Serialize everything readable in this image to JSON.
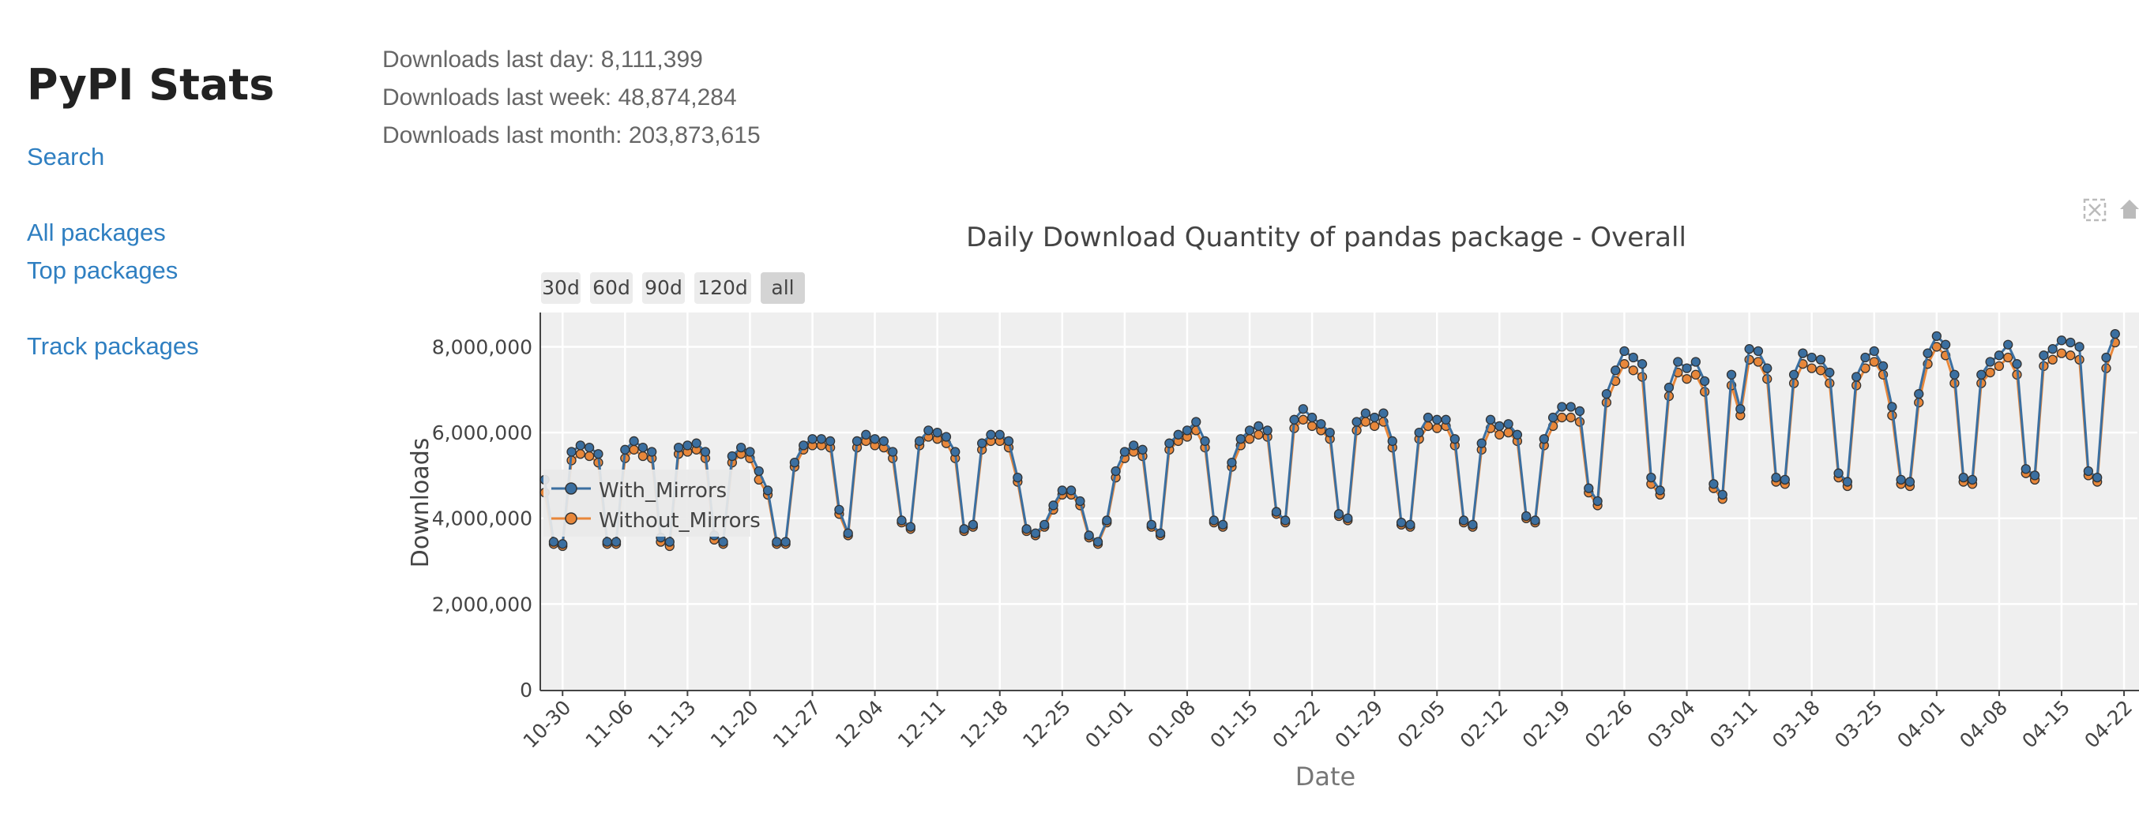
{
  "sidebar": {
    "title": "PyPI Stats",
    "links": [
      "Search",
      "All packages",
      "Top packages",
      "Track packages"
    ]
  },
  "stats": {
    "last_day": "Downloads last day: 8,111,399",
    "last_week": "Downloads last week: 48,874,284",
    "last_month": "Downloads last month: 203,873,615"
  },
  "modebar": {
    "icons": [
      "autoscale-icon",
      "home-icon"
    ]
  },
  "chart_data": {
    "type": "line",
    "title": "Daily Download Quantity of pandas package - Overall",
    "xlabel": "Date",
    "ylabel": "Downloads",
    "range_buttons": [
      "30d",
      "60d",
      "90d",
      "120d",
      "all"
    ],
    "selected_range": "all",
    "ylim": [
      0,
      8800000
    ],
    "yticks": [
      "0",
      "2,000,000",
      "4,000,000",
      "6,000,000",
      "8,000,000"
    ],
    "ytick_values": [
      0,
      2000000,
      4000000,
      6000000,
      8000000
    ],
    "xticks": [
      "10-30",
      "11-06",
      "11-13",
      "11-20",
      "11-27",
      "12-04",
      "12-11",
      "12-18",
      "12-25",
      "01-01",
      "01-08",
      "01-15",
      "01-22",
      "01-29",
      "02-05",
      "02-12",
      "02-19",
      "02-26",
      "03-04",
      "03-11",
      "03-18",
      "03-25",
      "04-01",
      "04-08",
      "04-15",
      "04-22"
    ],
    "xtick_days": [
      2,
      9,
      16,
      23,
      30,
      37,
      44,
      51,
      58,
      65,
      72,
      79,
      86,
      93,
      100,
      107,
      114,
      121,
      128,
      135,
      142,
      149,
      156,
      163,
      170,
      177
    ],
    "x_start": "2023-10-28",
    "x_range_days": [
      -0.5,
      178.5
    ],
    "legend": {
      "entries": [
        "With_Mirrors",
        "Without_Mirrors"
      ],
      "position": "middle-left"
    },
    "grid": true,
    "colors": {
      "With_Mirrors": "#3b6fa0",
      "Without_Mirrors": "#e8873a"
    },
    "series": [
      {
        "name": "Without_Mirrors",
        "values": [
          4600000,
          3400000,
          3350000,
          5350000,
          5500000,
          5450000,
          5300000,
          3400000,
          3400000,
          5400000,
          5600000,
          5450000,
          5400000,
          3450000,
          3350000,
          5500000,
          5550000,
          5600000,
          5400000,
          3500000,
          3400000,
          5300000,
          5500000,
          5400000,
          4900000,
          4550000,
          3400000,
          3400000,
          5200000,
          5600000,
          5700000,
          5700000,
          5650000,
          4100000,
          3600000,
          5650000,
          5800000,
          5700000,
          5650000,
          5400000,
          3900000,
          3750000,
          5700000,
          5900000,
          5850000,
          5750000,
          5400000,
          3700000,
          3800000,
          5600000,
          5800000,
          5800000,
          5650000,
          4850000,
          3700000,
          3600000,
          3800000,
          4200000,
          4550000,
          4550000,
          4300000,
          3550000,
          3400000,
          3900000,
          4950000,
          5400000,
          5550000,
          5450000,
          3800000,
          3600000,
          5600000,
          5800000,
          5900000,
          6050000,
          5650000,
          3900000,
          3800000,
          5200000,
          5700000,
          5850000,
          5950000,
          5900000,
          4100000,
          3900000,
          6100000,
          6300000,
          6150000,
          6050000,
          5850000,
          4050000,
          3950000,
          6050000,
          6250000,
          6150000,
          6250000,
          5650000,
          3850000,
          3800000,
          5850000,
          6150000,
          6100000,
          6150000,
          5700000,
          3900000,
          3800000,
          5600000,
          6100000,
          5950000,
          6000000,
          5800000,
          4000000,
          3900000,
          5700000,
          6150000,
          6350000,
          6350000,
          6250000,
          4600000,
          4300000,
          6700000,
          7200000,
          7600000,
          7450000,
          7300000,
          4800000,
          4550000,
          6850000,
          7400000,
          7250000,
          7350000,
          6950000,
          4700000,
          4450000,
          7100000,
          6400000,
          7700000,
          7650000,
          7250000,
          4850000,
          4800000,
          7150000,
          7600000,
          7500000,
          7450000,
          7150000,
          4950000,
          4750000,
          7100000,
          7500000,
          7650000,
          7350000,
          6400000,
          4800000,
          4750000,
          6700000,
          7600000,
          8000000,
          7800000,
          7150000,
          4850000,
          4800000,
          7150000,
          7400000,
          7550000,
          7750000,
          7350000,
          5050000,
          4900000,
          7550000,
          7700000,
          7850000,
          7800000,
          7700000,
          5000000,
          4850000,
          7500000,
          8100000
        ]
      },
      {
        "name": "With_Mirrors",
        "values": [
          4900000,
          3450000,
          3400000,
          5550000,
          5700000,
          5650000,
          5500000,
          3450000,
          3450000,
          5600000,
          5800000,
          5650000,
          5550000,
          3550000,
          3450000,
          5650000,
          5700000,
          5750000,
          5550000,
          3600000,
          3450000,
          5450000,
          5650000,
          5550000,
          5100000,
          4650000,
          3450000,
          3450000,
          5300000,
          5700000,
          5850000,
          5850000,
          5800000,
          4200000,
          3650000,
          5800000,
          5950000,
          5850000,
          5800000,
          5550000,
          3950000,
          3800000,
          5800000,
          6050000,
          6000000,
          5900000,
          5550000,
          3750000,
          3850000,
          5750000,
          5950000,
          5950000,
          5800000,
          4950000,
          3750000,
          3650000,
          3850000,
          4300000,
          4650000,
          4650000,
          4400000,
          3600000,
          3450000,
          3950000,
          5100000,
          5550000,
          5700000,
          5600000,
          3850000,
          3650000,
          5750000,
          5950000,
          6050000,
          6250000,
          5800000,
          3950000,
          3850000,
          5300000,
          5850000,
          6050000,
          6150000,
          6050000,
          4150000,
          3950000,
          6300000,
          6550000,
          6350000,
          6200000,
          6000000,
          4100000,
          4000000,
          6250000,
          6450000,
          6350000,
          6450000,
          5800000,
          3900000,
          3850000,
          6000000,
          6350000,
          6300000,
          6300000,
          5850000,
          3950000,
          3850000,
          5750000,
          6300000,
          6150000,
          6200000,
          5950000,
          4050000,
          3950000,
          5850000,
          6350000,
          6600000,
          6600000,
          6500000,
          4700000,
          4400000,
          6900000,
          7450000,
          7900000,
          7750000,
          7600000,
          4950000,
          4650000,
          7050000,
          7650000,
          7500000,
          7650000,
          7200000,
          4800000,
          4550000,
          7350000,
          6550000,
          7950000,
          7900000,
          7500000,
          4950000,
          4900000,
          7350000,
          7850000,
          7750000,
          7700000,
          7400000,
          5050000,
          4850000,
          7300000,
          7750000,
          7900000,
          7550000,
          6600000,
          4900000,
          4850000,
          6900000,
          7850000,
          8250000,
          8050000,
          7350000,
          4950000,
          4900000,
          7350000,
          7650000,
          7800000,
          8050000,
          7600000,
          5150000,
          5000000,
          7800000,
          7950000,
          8150000,
          8100000,
          8000000,
          5100000,
          4950000,
          7750000,
          8300000
        ]
      }
    ]
  }
}
